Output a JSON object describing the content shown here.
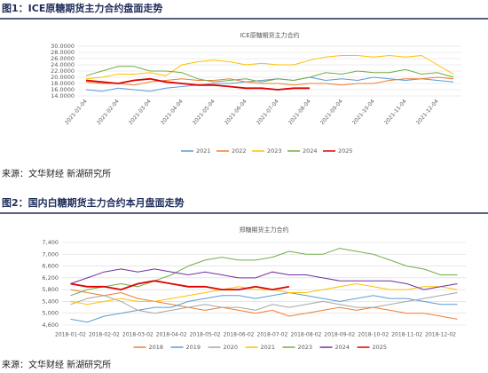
{
  "figures": [
    {
      "heading": "图1：ICE原糖期货主力合约盘面走势",
      "source": "来源：文华财经  新湖研究所"
    },
    {
      "heading": "图2：国内白糖期货主力合约本月盘面走势",
      "source": "来源：文华财经  新湖研究所"
    }
  ],
  "chart_data": [
    {
      "type": "line",
      "title": "ICE原糖期货主力合约",
      "categories": [
        "2021-01-04",
        null,
        "2021-02-04",
        null,
        "2021-03-04",
        null,
        "2021-04-04",
        null,
        "2021-05-04",
        null,
        "2021-06-04",
        null,
        "2021-07-04",
        null,
        "2021-08-04",
        null,
        "2021-09-04",
        null,
        "2021-10-04",
        null,
        "2021-11-04",
        null,
        "2021-12-04",
        null
      ],
      "ylim": [
        14,
        30
      ],
      "yticks": [
        {
          "value": 30,
          "label": "30.0000"
        },
        {
          "value": 28,
          "label": "28.0000"
        },
        {
          "value": 26,
          "label": "26.0000"
        },
        {
          "value": 24,
          "label": "24.0000"
        },
        {
          "value": 22,
          "label": "22.0000"
        },
        {
          "value": 20,
          "label": "20.0000"
        },
        {
          "value": 18,
          "label": "18.0000"
        },
        {
          "value": 16,
          "label": "16.0000"
        },
        {
          "value": 14,
          "label": "14.0000"
        }
      ],
      "grid": true,
      "series": [
        {
          "name": "2021",
          "color": "#5b9bd5",
          "values": [
            16,
            15.5,
            16.5,
            16,
            15.5,
            16.5,
            17,
            17.5,
            18,
            18,
            18.5,
            19,
            19.5,
            19,
            20,
            19,
            19.5,
            19,
            20,
            19.5,
            19,
            19.5,
            19,
            18.5
          ]
        },
        {
          "name": "2022",
          "color": "#ed7d31",
          "values": [
            18.5,
            18,
            18,
            17.5,
            18.5,
            19,
            19.5,
            19,
            19,
            19.5,
            18.5,
            18,
            18,
            17.5,
            18,
            18,
            17.5,
            18,
            18,
            19,
            19.5,
            19.5,
            20,
            19.5
          ]
        },
        {
          "name": "2023",
          "color": "#ffc000",
          "values": [
            19.5,
            20,
            21,
            21,
            21.5,
            20.5,
            24,
            25,
            25.5,
            25,
            24,
            24.5,
            24,
            24,
            25.5,
            26.5,
            27,
            27,
            26.5,
            27,
            26.5,
            27,
            24,
            21
          ]
        },
        {
          "name": "2024",
          "color": "#70ad47",
          "values": [
            20.5,
            22,
            23.5,
            23.5,
            22,
            22,
            21.5,
            19.5,
            18.5,
            19,
            19.5,
            18.5,
            19.5,
            19,
            20,
            21.5,
            21,
            22,
            21.5,
            21.5,
            22.5,
            21,
            21.5,
            20
          ]
        },
        {
          "name": "2025",
          "color": "#e00000",
          "values": [
            19,
            18.5,
            18,
            19,
            19.5,
            18.5,
            18,
            17.5,
            17.5,
            17,
            16.5,
            16.5,
            16,
            16.5,
            16.5,
            null,
            null,
            null,
            null,
            null,
            null,
            null,
            null,
            null
          ]
        }
      ]
    },
    {
      "type": "line",
      "title": "郑糖期货主力合约",
      "categories": [
        "2018-01-02",
        null,
        "2018-02-02",
        null,
        "2018-03-02",
        null,
        "2018-04-02",
        null,
        "2018-05-02",
        null,
        "2018-06-02",
        null,
        "2018-07-02",
        null,
        "2018-08-02",
        null,
        "2018-09-02",
        null,
        "2018-10-02",
        null,
        "2018-11-02",
        null,
        "2018-12-02",
        null
      ],
      "ylim": [
        4600,
        7400
      ],
      "yticks": [
        {
          "value": 7400,
          "label": "7,400"
        },
        {
          "value": 7000,
          "label": "7,000"
        },
        {
          "value": 6600,
          "label": "6,600"
        },
        {
          "value": 6200,
          "label": "6,200"
        },
        {
          "value": 5800,
          "label": "5,800"
        },
        {
          "value": 5400,
          "label": "5,400"
        },
        {
          "value": 5000,
          "label": "5,000"
        },
        {
          "value": 4600,
          "label": "4,600"
        }
      ],
      "grid": true,
      "series": [
        {
          "name": "2018",
          "color": "#ed7d31",
          "values": [
            5800,
            5700,
            5600,
            5700,
            5500,
            5400,
            5300,
            5200,
            5100,
            5200,
            5100,
            5000,
            5100,
            4900,
            5000,
            5100,
            5200,
            5100,
            5200,
            5100,
            5000,
            5000,
            4900,
            4800
          ]
        },
        {
          "name": "2019",
          "color": "#5b9bd5",
          "values": [
            4800,
            4700,
            4900,
            5000,
            5100,
            5200,
            5200,
            5400,
            5500,
            5600,
            5600,
            5500,
            5600,
            5700,
            5600,
            5500,
            5400,
            5500,
            5600,
            5500,
            5500,
            5400,
            5300,
            5300
          ]
        },
        {
          "name": "2020",
          "color": "#a5a5a5",
          "values": [
            5300,
            5500,
            5600,
            5400,
            5100,
            5000,
            5100,
            5200,
            5300,
            5200,
            5200,
            5100,
            5300,
            5200,
            5300,
            5400,
            5300,
            5200,
            5200,
            5300,
            5400,
            5500,
            5600,
            5700
          ]
        },
        {
          "name": "2021",
          "color": "#ffc000",
          "values": [
            5400,
            5300,
            5400,
            5500,
            5400,
            5400,
            5500,
            5600,
            5700,
            5800,
            5900,
            5800,
            5800,
            5700,
            5700,
            5800,
            5900,
            6000,
            5900,
            5800,
            5800,
            5900,
            5900,
            5800
          ]
        },
        {
          "name": "2023",
          "color": "#70ad47",
          "values": [
            5600,
            5800,
            5900,
            6000,
            5900,
            6100,
            6300,
            6600,
            6800,
            6900,
            6800,
            6800,
            6900,
            7100,
            7000,
            7000,
            7200,
            7100,
            7000,
            6800,
            6600,
            6500,
            6300,
            6300
          ]
        },
        {
          "name": "2024",
          "color": "#7030a0",
          "values": [
            6000,
            6200,
            6400,
            6500,
            6400,
            6500,
            6400,
            6300,
            6400,
            6300,
            6200,
            6200,
            6400,
            6300,
            6300,
            6200,
            6100,
            6100,
            6100,
            6100,
            6000,
            5800,
            5900,
            6000
          ]
        },
        {
          "name": "2025",
          "color": "#e00000",
          "values": [
            6000,
            5900,
            5900,
            5800,
            6000,
            6100,
            6000,
            5900,
            5900,
            5800,
            5800,
            5900,
            5800,
            5900,
            null,
            null,
            null,
            null,
            null,
            null,
            null,
            null,
            null,
            null
          ]
        }
      ]
    }
  ]
}
